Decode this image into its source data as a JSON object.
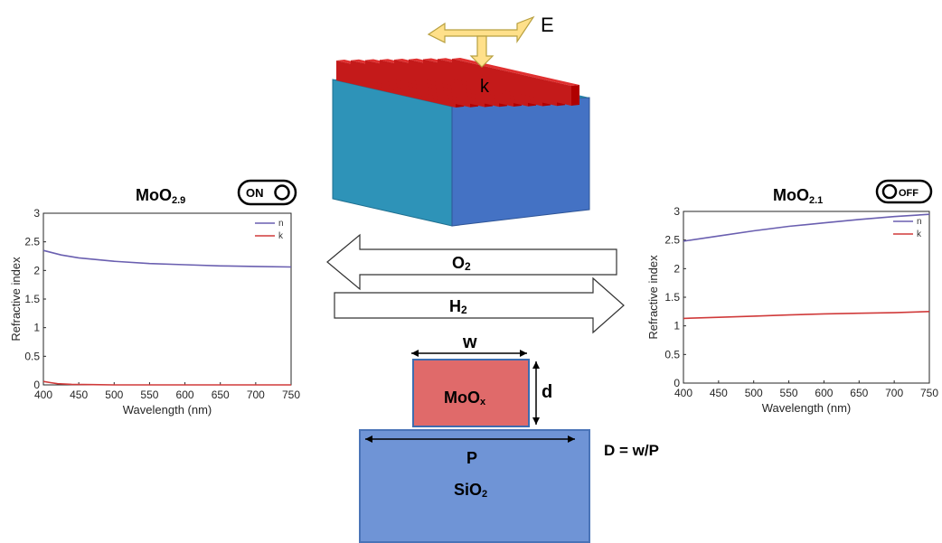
{
  "top": {
    "field_label": "E",
    "wavevector_label": "k"
  },
  "arrows": {
    "oxidize_label": "O",
    "oxidize_sub": "2",
    "reduce_label": "H",
    "reduce_sub": "2"
  },
  "cross_section": {
    "width_label": "w",
    "thickness_label": "d",
    "period_label": "P",
    "grating_material": "MoO",
    "grating_sub": "x",
    "substrate_material": "SiO",
    "substrate_sub": "2",
    "duty_cycle_eq": "D = w/P"
  },
  "switches": {
    "left": "ON",
    "right": "OFF"
  },
  "colors": {
    "n": "#6a5fb0",
    "k": "#d03a3a",
    "grating": "#c00000",
    "substrate": "#4472c4"
  },
  "chart_data": [
    {
      "type": "line",
      "title": "MoO",
      "title_sub": "2.9",
      "xlabel": "Wavelength (nm)",
      "ylabel": "Refractive index",
      "xlim": [
        400,
        750
      ],
      "ylim": [
        0,
        3
      ],
      "xticks": [
        "400",
        "450",
        "500",
        "550",
        "600",
        "650",
        "700",
        "750"
      ],
      "yticks": [
        "0",
        "0.5",
        "1",
        "1.5",
        "2",
        "2.5",
        "3"
      ],
      "legend_position": "top-right",
      "series": [
        {
          "name": "n",
          "x": [
            400,
            425,
            450,
            475,
            500,
            550,
            600,
            650,
            700,
            750
          ],
          "y": [
            2.35,
            2.27,
            2.22,
            2.19,
            2.16,
            2.12,
            2.1,
            2.08,
            2.07,
            2.06
          ]
        },
        {
          "name": "k",
          "x": [
            400,
            410,
            420,
            440,
            470,
            500,
            750
          ],
          "y": [
            0.06,
            0.04,
            0.02,
            0.01,
            0.005,
            0.0,
            0.0
          ]
        }
      ]
    },
    {
      "type": "line",
      "title": "MoO",
      "title_sub": "2.1",
      "xlabel": "Wavelength (nm)",
      "ylabel": "Refractive index",
      "xlim": [
        400,
        750
      ],
      "ylim": [
        0,
        3
      ],
      "xticks": [
        "400",
        "450",
        "500",
        "550",
        "600",
        "650",
        "700",
        "750"
      ],
      "yticks": [
        "0",
        "0.5",
        "1",
        "1.5",
        "2",
        "2.5",
        "3"
      ],
      "legend_position": "top-right",
      "series": [
        {
          "name": "n",
          "x": [
            400,
            450,
            500,
            550,
            600,
            650,
            700,
            750
          ],
          "y": [
            2.48,
            2.57,
            2.66,
            2.74,
            2.8,
            2.86,
            2.91,
            2.95
          ]
        },
        {
          "name": "k",
          "x": [
            400,
            450,
            500,
            550,
            600,
            650,
            700,
            750
          ],
          "y": [
            1.13,
            1.15,
            1.17,
            1.19,
            1.21,
            1.22,
            1.23,
            1.25
          ]
        }
      ]
    }
  ]
}
